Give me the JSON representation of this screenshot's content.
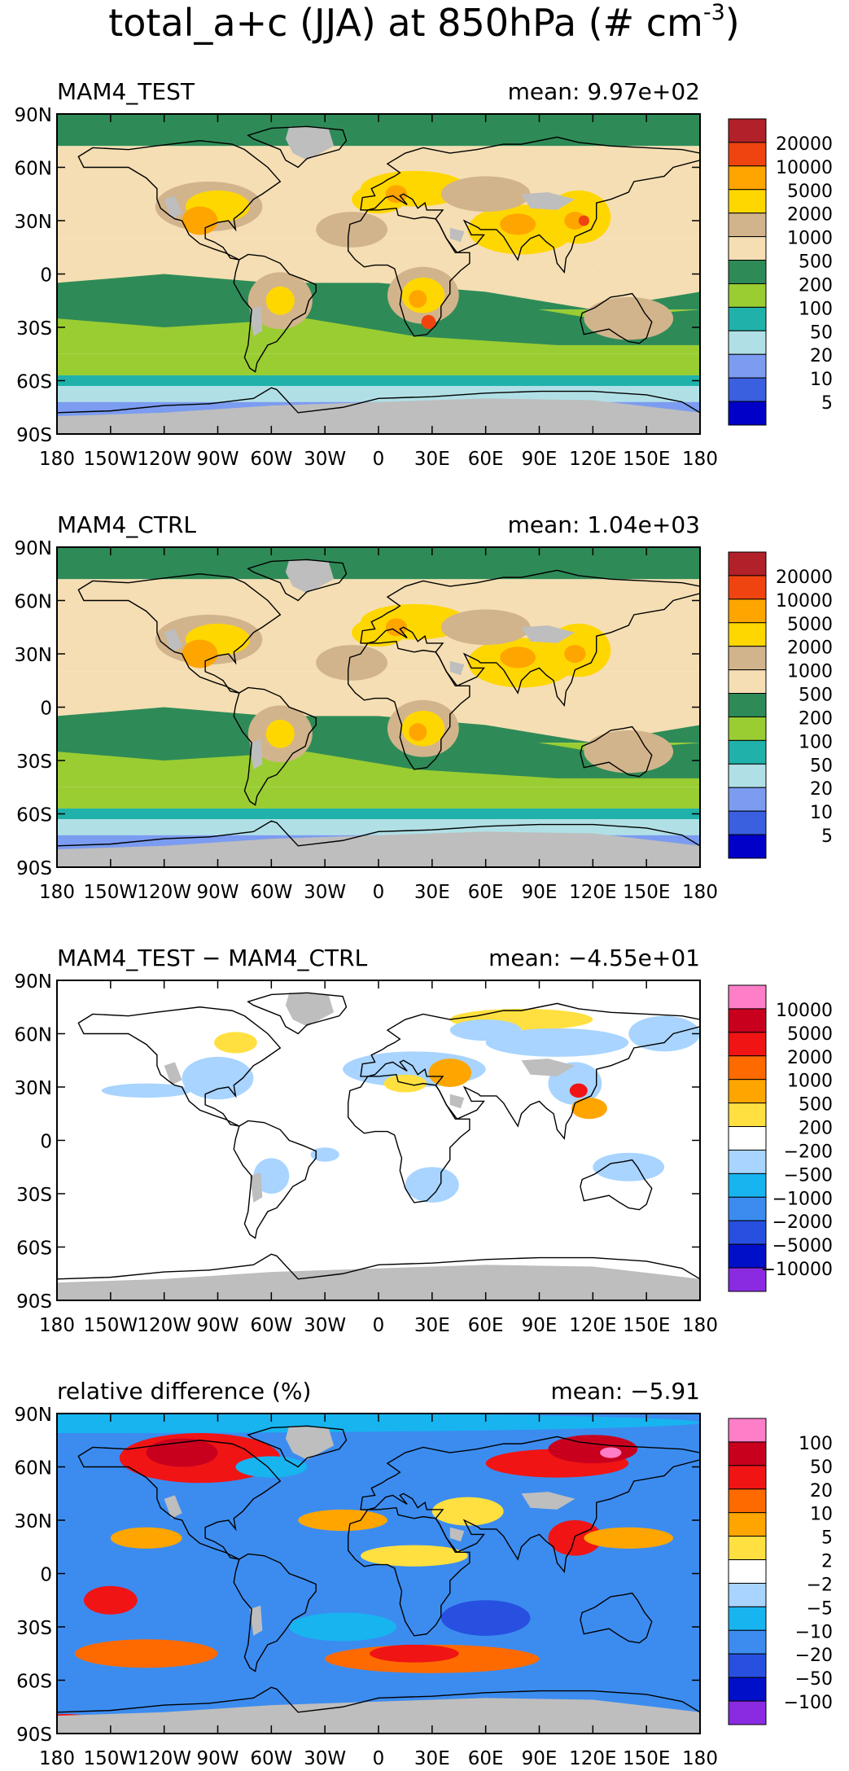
{
  "figure": {
    "title": "total_a+c (JJA) at 850hPa (# cm",
    "title_superscript": "-3",
    "title_close": ")"
  },
  "chart_data": [
    {
      "type": "heatmap",
      "panel_label": "MAM4_TEST",
      "mean_label": "mean: 9.97e+02",
      "mean_value": 997,
      "x_ticks": [
        "180",
        "150W",
        "120W",
        "90W",
        "60W",
        "30W",
        "0",
        "30E",
        "60E",
        "90E",
        "120E",
        "150E",
        "180"
      ],
      "y_ticks": [
        "90N",
        "60N",
        "30N",
        "0",
        "30S",
        "60S",
        "90S"
      ],
      "xlim": [
        -180,
        180
      ],
      "ylim": [
        -90,
        90
      ],
      "colorbar_levels": [
        "20000",
        "10000",
        "5000",
        "2000",
        "1000",
        "500",
        "200",
        "100",
        "50",
        "20",
        "10",
        "5"
      ],
      "colorbar_colors": [
        "#b2202a",
        "#f04410",
        "#ffa500",
        "#ffd700",
        "#d2b48c",
        "#f5deb3",
        "#2e8b57",
        "#9acd32",
        "#20b2aa",
        "#b0e0e6",
        "#7b9cf0",
        "#3a60e0",
        "#0000c8"
      ]
    },
    {
      "type": "heatmap",
      "panel_label": "MAM4_CTRL",
      "mean_label": "mean: 1.04e+03",
      "mean_value": 1040,
      "x_ticks": [
        "180",
        "150W",
        "120W",
        "90W",
        "60W",
        "30W",
        "0",
        "30E",
        "60E",
        "90E",
        "120E",
        "150E",
        "180"
      ],
      "y_ticks": [
        "90N",
        "60N",
        "30N",
        "0",
        "30S",
        "60S",
        "90S"
      ],
      "xlim": [
        -180,
        180
      ],
      "ylim": [
        -90,
        90
      ],
      "colorbar_levels": [
        "20000",
        "10000",
        "5000",
        "2000",
        "1000",
        "500",
        "200",
        "100",
        "50",
        "20",
        "10",
        "5"
      ],
      "colorbar_colors": [
        "#b2202a",
        "#f04410",
        "#ffa500",
        "#ffd700",
        "#d2b48c",
        "#f5deb3",
        "#2e8b57",
        "#9acd32",
        "#20b2aa",
        "#b0e0e6",
        "#7b9cf0",
        "#3a60e0",
        "#0000c8"
      ]
    },
    {
      "type": "heatmap",
      "panel_label": "MAM4_TEST − MAM4_CTRL",
      "mean_label": "mean: −4.55e+01",
      "mean_value": -45.5,
      "x_ticks": [
        "180",
        "150W",
        "120W",
        "90W",
        "60W",
        "30W",
        "0",
        "30E",
        "60E",
        "90E",
        "120E",
        "150E",
        "180"
      ],
      "y_ticks": [
        "90N",
        "60N",
        "30N",
        "0",
        "30S",
        "60S",
        "90S"
      ],
      "xlim": [
        -180,
        180
      ],
      "ylim": [
        -90,
        90
      ],
      "colorbar_levels": [
        "10000",
        "5000",
        "2000",
        "1000",
        "500",
        "200",
        "−200",
        "−500",
        "−1000",
        "−2000",
        "−5000",
        "−10000"
      ],
      "colorbar_colors": [
        "#ff7ec8",
        "#c8001e",
        "#f01414",
        "#ff6a00",
        "#ffa500",
        "#ffe040",
        "#ffffff",
        "#a8d4ff",
        "#18b4f0",
        "#3c8cf0",
        "#2850e0",
        "#0010c8",
        "#8a2be2"
      ]
    },
    {
      "type": "heatmap",
      "panel_label": "relative difference (%)",
      "mean_label": "mean: −5.91",
      "mean_value": -5.91,
      "x_ticks": [
        "180",
        "150W",
        "120W",
        "90W",
        "60W",
        "30W",
        "0",
        "30E",
        "60E",
        "90E",
        "120E",
        "150E",
        "180"
      ],
      "y_ticks": [
        "90N",
        "60N",
        "30N",
        "0",
        "30S",
        "60S",
        "90S"
      ],
      "xlim": [
        -180,
        180
      ],
      "ylim": [
        -90,
        90
      ],
      "colorbar_levels": [
        "100",
        "50",
        "20",
        "10",
        "5",
        "2",
        "−2",
        "−5",
        "−10",
        "−20",
        "−50",
        "−100"
      ],
      "colorbar_colors": [
        "#ff7ec8",
        "#c8001e",
        "#f01414",
        "#ff6a00",
        "#ffa500",
        "#ffe040",
        "#ffffff",
        "#a8d4ff",
        "#18b4f0",
        "#3c8cf0",
        "#2850e0",
        "#0010c8",
        "#8a2be2"
      ]
    }
  ]
}
